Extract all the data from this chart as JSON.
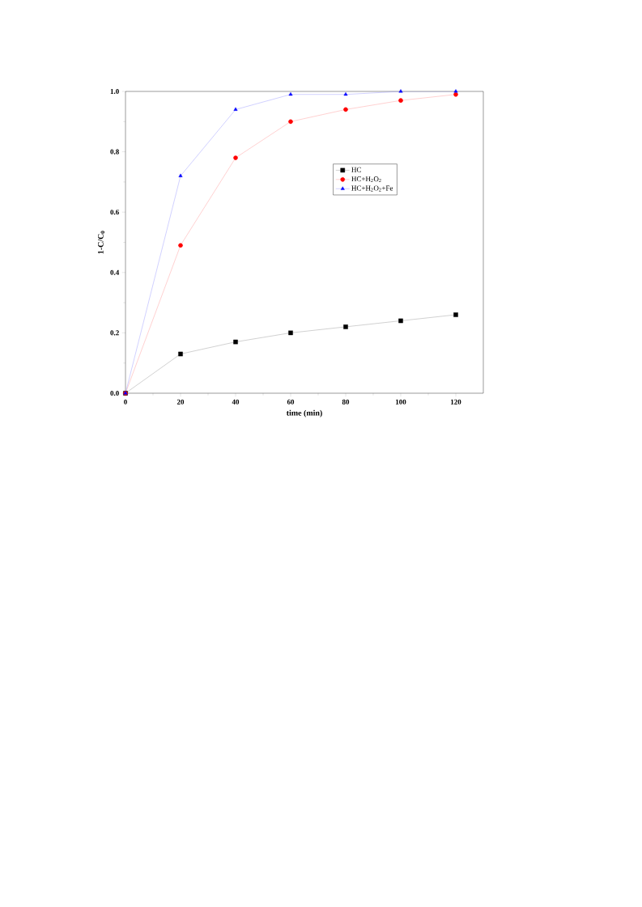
{
  "chart_data": {
    "type": "line",
    "xlabel": "time (min)",
    "ylabel": "1-C/C$_{0}$",
    "x": [
      0,
      20,
      40,
      60,
      80,
      100,
      120
    ],
    "series": [
      {
        "name": "HC",
        "color": "#000000",
        "marker": "square",
        "values": [
          0.0,
          0.13,
          0.17,
          0.2,
          0.22,
          0.24,
          0.26
        ]
      },
      {
        "name": "HC+H$_{2}$O$_{2}$",
        "color": "#ff0000",
        "marker": "circle",
        "values": [
          0.0,
          0.49,
          0.78,
          0.9,
          0.94,
          0.97,
          0.99
        ]
      },
      {
        "name": "HC+H$_{2}$O$_{2}$+Fe",
        "color": "#0000ff",
        "marker": "triangle",
        "values": [
          0.0,
          0.72,
          0.94,
          0.99,
          0.99,
          1.0,
          1.0
        ]
      }
    ],
    "xlim": [
      0,
      130
    ],
    "ylim": [
      0,
      1.0
    ],
    "xticks": [
      0,
      20,
      40,
      60,
      80,
      100,
      120
    ],
    "yticks": [
      {
        "value": 0,
        "label": "0.0"
      },
      {
        "value": 0.2,
        "label": "0.2"
      },
      {
        "value": 0.4,
        "label": "0.4"
      },
      {
        "value": 0.6,
        "label": "0.6"
      },
      {
        "value": 0.8,
        "label": "0.8"
      },
      {
        "value": 1.0,
        "label": "1.0"
      }
    ],
    "legend": "right",
    "grid": false
  }
}
